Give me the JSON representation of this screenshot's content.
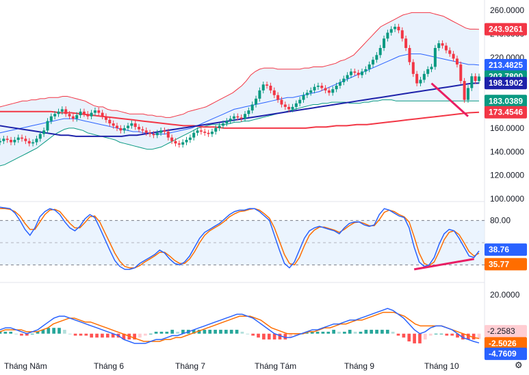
{
  "chart_data": {
    "type": "line",
    "x_labels": [
      "Tháng Năm",
      "Tháng 6",
      "Tháng 7",
      "Tháng Tám",
      "Tháng 9",
      "Tháng 10"
    ],
    "price_panel": {
      "type": "candlestick",
      "y_ticks": [
        "260.0000",
        "240.0000",
        "220.0000",
        "200.0000",
        "180.0000",
        "160.0000",
        "140.0000",
        "120.0000",
        "100.0000"
      ],
      "ylim": [
        100,
        260
      ],
      "price_tags": [
        {
          "value": "243.9261",
          "series": "bollinger_upper",
          "color": "#f23645"
        },
        {
          "value": "213.4825",
          "series": "ema_fast",
          "color": "#2962ff"
        },
        {
          "value": "203.7800",
          "series": "close",
          "color": "#089981"
        },
        {
          "value": "198.1902",
          "series": "ema_slow",
          "color": "#1e22aa"
        },
        {
          "value": "183.0389",
          "series": "bollinger_lower",
          "color": "#089981"
        },
        {
          "value": "173.4546",
          "series": "ma_long",
          "color": "#f23645"
        }
      ],
      "close": [
        149,
        151,
        150,
        148,
        150,
        152,
        151,
        149,
        147,
        148,
        151,
        155,
        158,
        166,
        170,
        172,
        174,
        176,
        172,
        170,
        168,
        171,
        174,
        172,
        170,
        173,
        175,
        173,
        170,
        167,
        164,
        162,
        160,
        158,
        160,
        162,
        164,
        161,
        159,
        158,
        156,
        155,
        154,
        156,
        158,
        157,
        152,
        149,
        147,
        146,
        148,
        150,
        152,
        156,
        158,
        157,
        156,
        155,
        157,
        160,
        162,
        164,
        166,
        168,
        170,
        169,
        168,
        172,
        175,
        180,
        185,
        192,
        197,
        196,
        192,
        188,
        184,
        180,
        178,
        176,
        178,
        181,
        184,
        188,
        190,
        192,
        195,
        196,
        194,
        192,
        190,
        193,
        196,
        199,
        202,
        205,
        208,
        207,
        205,
        208,
        210,
        214,
        218,
        222,
        228,
        236,
        241,
        244,
        246,
        243,
        236,
        228,
        216,
        206,
        198,
        201,
        206,
        210,
        212,
        228,
        232,
        230,
        226,
        223,
        219,
        214,
        200,
        184,
        194,
        204,
        200,
        203.78
      ],
      "bollinger_upper": [
        178,
        179,
        180,
        181,
        182,
        183,
        183,
        184,
        184,
        185,
        185,
        186,
        186,
        186,
        187,
        187,
        186,
        185,
        184,
        183,
        181,
        179,
        178,
        178,
        176,
        175,
        175,
        174,
        173,
        172,
        172,
        172,
        172,
        171,
        171,
        170,
        170,
        169,
        169,
        170,
        171,
        172,
        174,
        175,
        176,
        177,
        178,
        180,
        182,
        184,
        186,
        188,
        190,
        193,
        196,
        200,
        205,
        208,
        210,
        211,
        211,
        211,
        210,
        210,
        210,
        210,
        210,
        210,
        211,
        211,
        212,
        212,
        212,
        213,
        214,
        215,
        217,
        218,
        220,
        222,
        226,
        230,
        234,
        238,
        242,
        246,
        248,
        250,
        252,
        254,
        256,
        257,
        258,
        258,
        258,
        258,
        258,
        257,
        256,
        255,
        253,
        251,
        249,
        247,
        245,
        244,
        244,
        243.9
      ],
      "bollinger_lower": [
        128,
        129,
        131,
        133,
        135,
        137,
        139,
        141,
        143,
        146,
        149,
        152,
        155,
        157,
        159,
        160,
        160,
        159,
        158,
        156,
        155,
        154,
        153,
        152,
        151,
        150,
        148,
        147,
        146,
        145,
        144,
        143,
        142,
        142,
        143,
        144,
        146,
        148,
        150,
        152,
        154,
        156,
        158,
        160,
        161,
        162,
        163,
        163,
        163,
        163,
        164,
        165,
        165,
        166,
        166,
        167,
        168,
        169,
        170,
        171,
        172,
        173,
        174,
        175,
        176,
        177,
        178,
        179,
        180,
        180,
        181,
        181,
        182,
        182,
        182,
        182,
        181,
        181,
        181,
        182,
        182,
        183,
        183,
        184,
        184,
        184,
        183,
        183,
        183,
        183,
        183,
        183,
        183,
        183,
        183,
        183,
        183,
        183,
        183,
        183,
        183,
        183,
        183,
        183,
        183.0
      ],
      "ema_fast": [
        156,
        157,
        158,
        159,
        160,
        161,
        162,
        163,
        164,
        165,
        166,
        167,
        168,
        168,
        168,
        167,
        166,
        165,
        164,
        163,
        162,
        161,
        160,
        159,
        158,
        157,
        157,
        156,
        156,
        155,
        155,
        155,
        156,
        157,
        158,
        159,
        160,
        162,
        164,
        166,
        168,
        170,
        172,
        174,
        176,
        177,
        178,
        179,
        180,
        181,
        182,
        183,
        184,
        185,
        186,
        186,
        187,
        188,
        189,
        190,
        191,
        193,
        195,
        197,
        199,
        201,
        203,
        205,
        207,
        209,
        211,
        213,
        215,
        217,
        219,
        221,
        222,
        223,
        223,
        223,
        222,
        221,
        220,
        219,
        218,
        217,
        216,
        215,
        214,
        214,
        213.5
      ],
      "ema_slow": [
        162,
        161,
        160,
        159,
        158,
        157,
        156,
        155,
        154,
        154,
        153,
        153,
        153,
        153,
        153,
        153,
        153,
        154,
        154,
        155,
        156,
        157,
        158,
        159,
        160,
        161,
        162,
        163,
        164,
        165,
        166,
        167,
        168,
        169,
        170,
        171,
        172,
        173,
        174,
        175,
        176,
        177,
        178,
        179,
        180,
        181,
        182,
        183,
        184,
        185,
        186,
        187,
        188,
        189,
        190,
        191,
        192,
        193,
        194,
        195,
        196,
        197,
        198,
        198.2
      ],
      "ma_long": [
        174,
        174,
        174,
        174,
        174,
        174,
        173,
        173,
        172,
        171,
        170,
        169,
        168,
        167,
        166,
        165,
        164,
        163,
        162,
        162,
        161,
        161,
        160,
        160,
        160,
        160,
        160,
        160,
        160,
        160,
        160,
        161,
        161,
        162,
        162,
        163,
        163,
        164,
        165,
        166,
        167,
        168,
        169,
        170,
        171,
        172,
        173,
        173.5
      ]
    },
    "stoch_panel": {
      "y_ticks": [
        "80.00"
      ],
      "upper_band": 80,
      "lower_band": 20,
      "ylim": [
        0,
        100
      ],
      "k_value": "38.76",
      "d_value": "35.77",
      "k_color": "#2962ff",
      "d_color": "#ff6d00",
      "k": [
        98,
        97,
        96,
        90,
        80,
        68,
        60,
        70,
        85,
        92,
        96,
        94,
        88,
        78,
        70,
        66,
        72,
        82,
        88,
        84,
        70,
        55,
        40,
        26,
        18,
        14,
        14,
        16,
        22,
        26,
        30,
        34,
        40,
        36,
        28,
        22,
        20,
        24,
        32,
        44,
        56,
        64,
        68,
        72,
        76,
        82,
        88,
        92,
        94,
        94,
        96,
        96,
        92,
        86,
        80,
        60,
        40,
        22,
        16,
        24,
        40,
        56,
        66,
        70,
        72,
        70,
        68,
        66,
        62,
        70,
        76,
        78,
        78,
        74,
        72,
        74,
        88,
        96,
        94,
        90,
        86,
        84,
        70,
        44,
        24,
        18,
        20,
        30,
        48,
        62,
        68,
        66,
        56,
        44,
        32,
        30,
        38.76
      ],
      "d": [
        96,
        96,
        95,
        92,
        86,
        76,
        68,
        68,
        78,
        88,
        94,
        95,
        92,
        84,
        76,
        70,
        70,
        77,
        85,
        86,
        78,
        64,
        50,
        36,
        25,
        18,
        16,
        16,
        19,
        24,
        28,
        32,
        37,
        37,
        32,
        26,
        22,
        22,
        28,
        38,
        50,
        60,
        66,
        70,
        74,
        79,
        85,
        89,
        92,
        93,
        95,
        96,
        94,
        89,
        83,
        70,
        52,
        34,
        22,
        20,
        30,
        46,
        60,
        67,
        71,
        71,
        69,
        67,
        64,
        68,
        73,
        77,
        78,
        76,
        73,
        73,
        81,
        91,
        94,
        92,
        88,
        85,
        78,
        58,
        36,
        22,
        19,
        24,
        38,
        54,
        64,
        66,
        61,
        50,
        38,
        32,
        35.77
      ]
    },
    "macd_panel": {
      "y_ticks": [
        "20.0000"
      ],
      "ylim": [
        -10,
        25
      ],
      "macd_value": "-4.7609",
      "signal_value": "-2.5026",
      "hist_value": "-2.2583",
      "macd_color": "#2962ff",
      "signal_color": "#ff6d00",
      "hist_color": "#f23645",
      "macd": [
        2,
        3,
        3,
        2,
        1,
        0,
        1,
        2,
        4,
        6,
        8,
        9,
        9,
        8,
        7,
        6,
        5,
        4,
        3,
        2,
        1,
        0,
        -1,
        -3,
        -4,
        -5,
        -5,
        -5,
        -4,
        -3,
        -3,
        -2,
        -1,
        -1,
        0,
        1,
        2,
        3,
        4,
        5,
        6,
        7,
        8,
        9,
        10,
        10,
        9,
        8,
        6,
        4,
        2,
        0,
        -1,
        -2,
        -2,
        -1,
        0,
        1,
        2,
        2,
        3,
        4,
        5,
        5,
        6,
        7,
        7,
        8,
        9,
        10,
        11,
        12,
        13,
        12,
        10,
        8,
        5,
        2,
        0,
        1,
        3,
        4,
        4,
        3,
        2,
        0,
        -2,
        -3,
        -4,
        -4.76
      ],
      "signal": [
        1,
        2,
        2,
        2,
        2,
        1,
        1,
        1,
        2,
        3,
        5,
        6,
        7,
        8,
        8,
        7,
        6,
        6,
        5,
        4,
        3,
        2,
        1,
        0,
        -1,
        -2,
        -3,
        -4,
        -4,
        -4,
        -4,
        -3,
        -3,
        -2,
        -2,
        -1,
        0,
        1,
        2,
        3,
        4,
        5,
        6,
        7,
        8,
        9,
        9,
        9,
        8,
        7,
        5,
        3,
        2,
        1,
        0,
        0,
        0,
        0,
        1,
        1,
        2,
        3,
        3,
        4,
        5,
        5,
        6,
        7,
        7,
        8,
        9,
        10,
        11,
        11,
        11,
        10,
        9,
        7,
        5,
        4,
        4,
        4,
        4,
        4,
        3,
        2,
        1,
        0,
        -1,
        -2,
        -2.5
      ]
    }
  },
  "ui": {
    "settings_icon": "gear-icon",
    "colors": {
      "grid_band": "#e3effd",
      "price_up": "#089981",
      "price_down": "#f23645",
      "divergence": "#e91e63"
    }
  }
}
